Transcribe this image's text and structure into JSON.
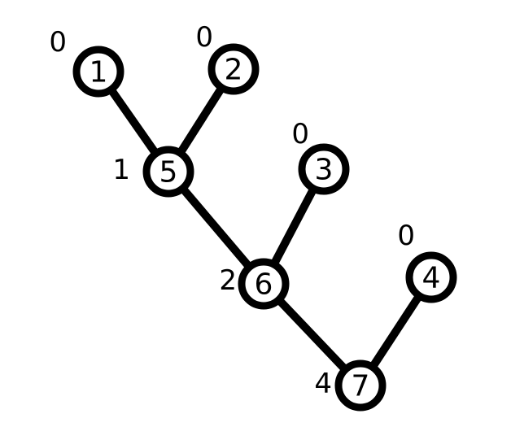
{
  "nodes": [
    {
      "id": "1",
      "label": "1",
      "annotation": "0"
    },
    {
      "id": "2",
      "label": "2",
      "annotation": "0"
    },
    {
      "id": "5",
      "label": "5",
      "annotation": "1"
    },
    {
      "id": "3",
      "label": "3",
      "annotation": "0"
    },
    {
      "id": "6",
      "label": "6",
      "annotation": "2"
    },
    {
      "id": "4",
      "label": "4",
      "annotation": "0"
    },
    {
      "id": "7",
      "label": "7",
      "annotation": "4"
    }
  ],
  "edges": [
    {
      "from": "1",
      "to": "5"
    },
    {
      "from": "2",
      "to": "5"
    },
    {
      "from": "5",
      "to": "6"
    },
    {
      "from": "3",
      "to": "6"
    },
    {
      "from": "6",
      "to": "7"
    },
    {
      "from": "4",
      "to": "7"
    }
  ],
  "colors": {
    "stroke": "#000000",
    "node_fill": "#ffffff",
    "background": "#ffffff"
  }
}
